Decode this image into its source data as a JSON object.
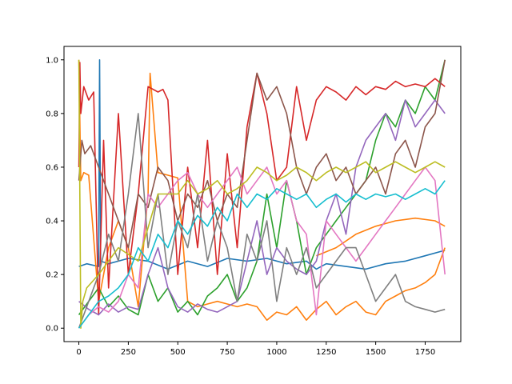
{
  "chart_data": {
    "type": "line",
    "title": "",
    "xlabel": "",
    "ylabel": "",
    "xlim": [
      -75,
      1930
    ],
    "ylim": [
      -0.05,
      1.05
    ],
    "xticks": [
      0,
      250,
      500,
      750,
      1000,
      1250,
      1500,
      1750
    ],
    "yticks": [
      0.0,
      0.2,
      0.4,
      0.6,
      0.8,
      1.0
    ],
    "xtick_labels": [
      "0",
      "250",
      "500",
      "750",
      "1000",
      "1250",
      "1500",
      "1750"
    ],
    "ytick_labels": [
      "0.0",
      "0.2",
      "0.4",
      "0.6",
      "0.8",
      "1.0"
    ],
    "grid": false,
    "legend": "none",
    "series": [
      {
        "color": "#1f77b4",
        "x": [
          0,
          40,
          100,
          105,
          110,
          150,
          250,
          350,
          450,
          550,
          650,
          750,
          850,
          950,
          1050,
          1150,
          1200,
          1250,
          1350,
          1450,
          1550,
          1650,
          1750,
          1850
        ],
        "y": [
          0.23,
          0.24,
          0.23,
          1.0,
          0.25,
          0.24,
          0.26,
          0.25,
          0.22,
          0.25,
          0.23,
          0.26,
          0.25,
          0.26,
          0.24,
          0.25,
          0.22,
          0.24,
          0.23,
          0.22,
          0.24,
          0.25,
          0.27,
          0.29
        ]
      },
      {
        "color": "#ff7f0e",
        "x": [
          0,
          10,
          25,
          50,
          100,
          150,
          200,
          250,
          300,
          350,
          360,
          400,
          450,
          500,
          550,
          600,
          650,
          700,
          750,
          800,
          850,
          900,
          950,
          1000,
          1050,
          1100,
          1150,
          1200,
          1250,
          1300,
          1350,
          1400,
          1450,
          1500,
          1550,
          1600,
          1650,
          1700,
          1750,
          1800,
          1850
        ],
        "y": [
          1.0,
          0.55,
          0.58,
          0.57,
          0.1,
          0.3,
          0.4,
          0.3,
          0.08,
          0.5,
          0.95,
          0.58,
          0.57,
          0.56,
          0.1,
          0.08,
          0.09,
          0.1,
          0.09,
          0.08,
          0.09,
          0.08,
          0.03,
          0.06,
          0.05,
          0.08,
          0.03,
          0.07,
          0.1,
          0.05,
          0.08,
          0.1,
          0.06,
          0.05,
          0.1,
          0.12,
          0.14,
          0.15,
          0.17,
          0.2,
          0.3
        ]
      },
      {
        "color": "#ff7f0e",
        "x": [
          1200,
          1300,
          1400,
          1500,
          1600,
          1700,
          1800,
          1850
        ],
        "y": [
          0.27,
          0.3,
          0.35,
          0.38,
          0.4,
          0.41,
          0.4,
          0.38
        ]
      },
      {
        "color": "#2ca02c",
        "x": [
          0,
          50,
          100,
          150,
          200,
          250,
          300,
          350,
          400,
          450,
          500,
          550,
          600,
          650,
          700,
          750,
          800,
          850,
          900,
          950,
          1000,
          1050,
          1100,
          1150,
          1200,
          1250,
          1300,
          1350,
          1400,
          1450,
          1500,
          1550,
          1600,
          1650,
          1700,
          1750,
          1800,
          1850
        ],
        "y": [
          0.05,
          0.1,
          0.15,
          0.08,
          0.12,
          0.07,
          0.05,
          0.2,
          0.1,
          0.15,
          0.06,
          0.1,
          0.05,
          0.12,
          0.15,
          0.2,
          0.1,
          0.15,
          0.25,
          0.5,
          0.3,
          0.55,
          0.4,
          0.2,
          0.3,
          0.35,
          0.4,
          0.45,
          0.5,
          0.55,
          0.7,
          0.8,
          0.75,
          0.85,
          0.8,
          0.9,
          0.85,
          1.0
        ]
      },
      {
        "color": "#d62728",
        "x": [
          0,
          5,
          10,
          25,
          50,
          75,
          100,
          125,
          150,
          200,
          250,
          300,
          350,
          400,
          425,
          450,
          500,
          550,
          600,
          650,
          700,
          750,
          800,
          850,
          900,
          950,
          1000,
          1050,
          1100,
          1150,
          1200,
          1250,
          1300,
          1350,
          1400,
          1450,
          1500,
          1550,
          1600,
          1650,
          1700,
          1750,
          1800,
          1850
        ],
        "y": [
          0.6,
          0.99,
          0.8,
          0.9,
          0.85,
          0.88,
          0.05,
          0.7,
          0.15,
          0.8,
          0.2,
          0.5,
          0.9,
          0.88,
          0.89,
          0.85,
          0.2,
          0.6,
          0.3,
          0.7,
          0.2,
          0.65,
          0.3,
          0.75,
          0.95,
          0.8,
          0.55,
          0.6,
          0.9,
          0.7,
          0.85,
          0.9,
          0.88,
          0.85,
          0.9,
          0.87,
          0.9,
          0.89,
          0.92,
          0.9,
          0.91,
          0.9,
          0.93,
          0.9
        ]
      },
      {
        "color": "#9467bd",
        "x": [
          0,
          50,
          100,
          150,
          200,
          250,
          300,
          350,
          400,
          450,
          500,
          550,
          600,
          650,
          700,
          750,
          800,
          850,
          900,
          950,
          1000,
          1050,
          1100,
          1150,
          1200,
          1250,
          1300,
          1350,
          1400,
          1450,
          1500,
          1550,
          1600,
          1650,
          1700,
          1750,
          1800,
          1850
        ],
        "y": [
          0.1,
          0.07,
          0.05,
          0.09,
          0.06,
          0.08,
          0.07,
          0.2,
          0.3,
          0.15,
          0.08,
          0.06,
          0.09,
          0.07,
          0.06,
          0.08,
          0.1,
          0.25,
          0.4,
          0.2,
          0.3,
          0.25,
          0.22,
          0.2,
          0.25,
          0.4,
          0.5,
          0.35,
          0.6,
          0.7,
          0.75,
          0.8,
          0.7,
          0.85,
          0.75,
          0.8,
          0.85,
          0.8
        ]
      },
      {
        "color": "#8c564b",
        "x": [
          0,
          15,
          30,
          60,
          100,
          150,
          200,
          250,
          300,
          350,
          400,
          450,
          500,
          550,
          600,
          650,
          700,
          750,
          800,
          850,
          900,
          950,
          1000,
          1050,
          1100,
          1150,
          1200,
          1250,
          1300,
          1350,
          1400,
          1450,
          1500,
          1550,
          1600,
          1650,
          1700,
          1750,
          1800,
          1850
        ],
        "y": [
          0.55,
          0.7,
          0.65,
          0.68,
          0.6,
          0.5,
          0.4,
          0.3,
          0.5,
          0.45,
          0.6,
          0.55,
          0.4,
          0.5,
          0.45,
          0.55,
          0.4,
          0.5,
          0.45,
          0.7,
          0.95,
          0.85,
          0.9,
          0.8,
          0.6,
          0.5,
          0.6,
          0.65,
          0.55,
          0.6,
          0.5,
          0.55,
          0.6,
          0.5,
          0.65,
          0.7,
          0.6,
          0.75,
          0.8,
          1.0
        ]
      },
      {
        "color": "#e377c2",
        "x": [
          0,
          50,
          100,
          150,
          200,
          250,
          300,
          350,
          400,
          450,
          500,
          550,
          600,
          650,
          700,
          750,
          800,
          850,
          900,
          950,
          1000,
          1050,
          1100,
          1150,
          1200,
          1250,
          1300,
          1350,
          1400,
          1450,
          1500,
          1550,
          1600,
          1650,
          1700,
          1750,
          1800,
          1850
        ],
        "y": [
          0.0,
          0.05,
          0.08,
          0.06,
          0.1,
          0.2,
          0.15,
          0.5,
          0.45,
          0.5,
          0.55,
          0.58,
          0.5,
          0.45,
          0.5,
          0.55,
          0.6,
          0.5,
          0.55,
          0.6,
          0.5,
          0.55,
          0.4,
          0.35,
          0.05,
          0.4,
          0.35,
          0.3,
          0.25,
          0.3,
          0.35,
          0.4,
          0.45,
          0.5,
          0.55,
          0.6,
          0.55,
          0.2
        ]
      },
      {
        "color": "#7f7f7f",
        "x": [
          0,
          50,
          100,
          150,
          200,
          250,
          300,
          350,
          400,
          450,
          500,
          550,
          600,
          650,
          700,
          750,
          800,
          850,
          900,
          950,
          1000,
          1050,
          1100,
          1150,
          1200,
          1250,
          1300,
          1350,
          1400,
          1450,
          1500,
          1550,
          1600,
          1650,
          1700,
          1750,
          1800,
          1850
        ],
        "y": [
          0.0,
          0.1,
          0.2,
          0.35,
          0.25,
          0.5,
          0.8,
          0.3,
          0.5,
          0.2,
          0.4,
          0.3,
          0.5,
          0.25,
          0.4,
          0.3,
          0.1,
          0.35,
          0.25,
          0.4,
          0.1,
          0.3,
          0.2,
          0.3,
          0.15,
          0.2,
          0.25,
          0.3,
          0.3,
          0.2,
          0.1,
          0.15,
          0.2,
          0.1,
          0.08,
          0.07,
          0.06,
          0.07
        ]
      },
      {
        "color": "#bcbd22",
        "x": [
          0,
          10,
          20,
          40,
          100,
          200,
          300,
          400,
          500,
          550,
          600,
          650,
          700,
          750,
          800,
          850,
          900,
          950,
          1000,
          1050,
          1100,
          1150,
          1200,
          1250,
          1300,
          1350,
          1400,
          1450,
          1500,
          1550,
          1600,
          1650,
          1700,
          1750,
          1800,
          1850
        ],
        "y": [
          1.0,
          0.0,
          0.1,
          0.15,
          0.2,
          0.3,
          0.25,
          0.5,
          0.5,
          0.55,
          0.5,
          0.52,
          0.55,
          0.5,
          0.52,
          0.55,
          0.6,
          0.58,
          0.55,
          0.57,
          0.6,
          0.58,
          0.55,
          0.58,
          0.6,
          0.58,
          0.6,
          0.62,
          0.58,
          0.6,
          0.62,
          0.6,
          0.58,
          0.6,
          0.62,
          0.6
        ]
      },
      {
        "color": "#17becf",
        "x": [
          0,
          50,
          100,
          150,
          200,
          250,
          300,
          350,
          400,
          450,
          500,
          550,
          600,
          650,
          700,
          750,
          800,
          850,
          900,
          950,
          1000,
          1050,
          1100,
          1150,
          1200,
          1250,
          1300,
          1350,
          1400,
          1450,
          1500,
          1550,
          1600,
          1650,
          1700,
          1750,
          1800,
          1850
        ],
        "y": [
          0.0,
          0.05,
          0.1,
          0.12,
          0.15,
          0.2,
          0.3,
          0.25,
          0.35,
          0.3,
          0.4,
          0.35,
          0.42,
          0.38,
          0.45,
          0.4,
          0.5,
          0.45,
          0.5,
          0.48,
          0.52,
          0.5,
          0.48,
          0.5,
          0.45,
          0.48,
          0.5,
          0.47,
          0.5,
          0.48,
          0.5,
          0.49,
          0.5,
          0.48,
          0.5,
          0.52,
          0.5,
          0.55
        ]
      }
    ]
  }
}
